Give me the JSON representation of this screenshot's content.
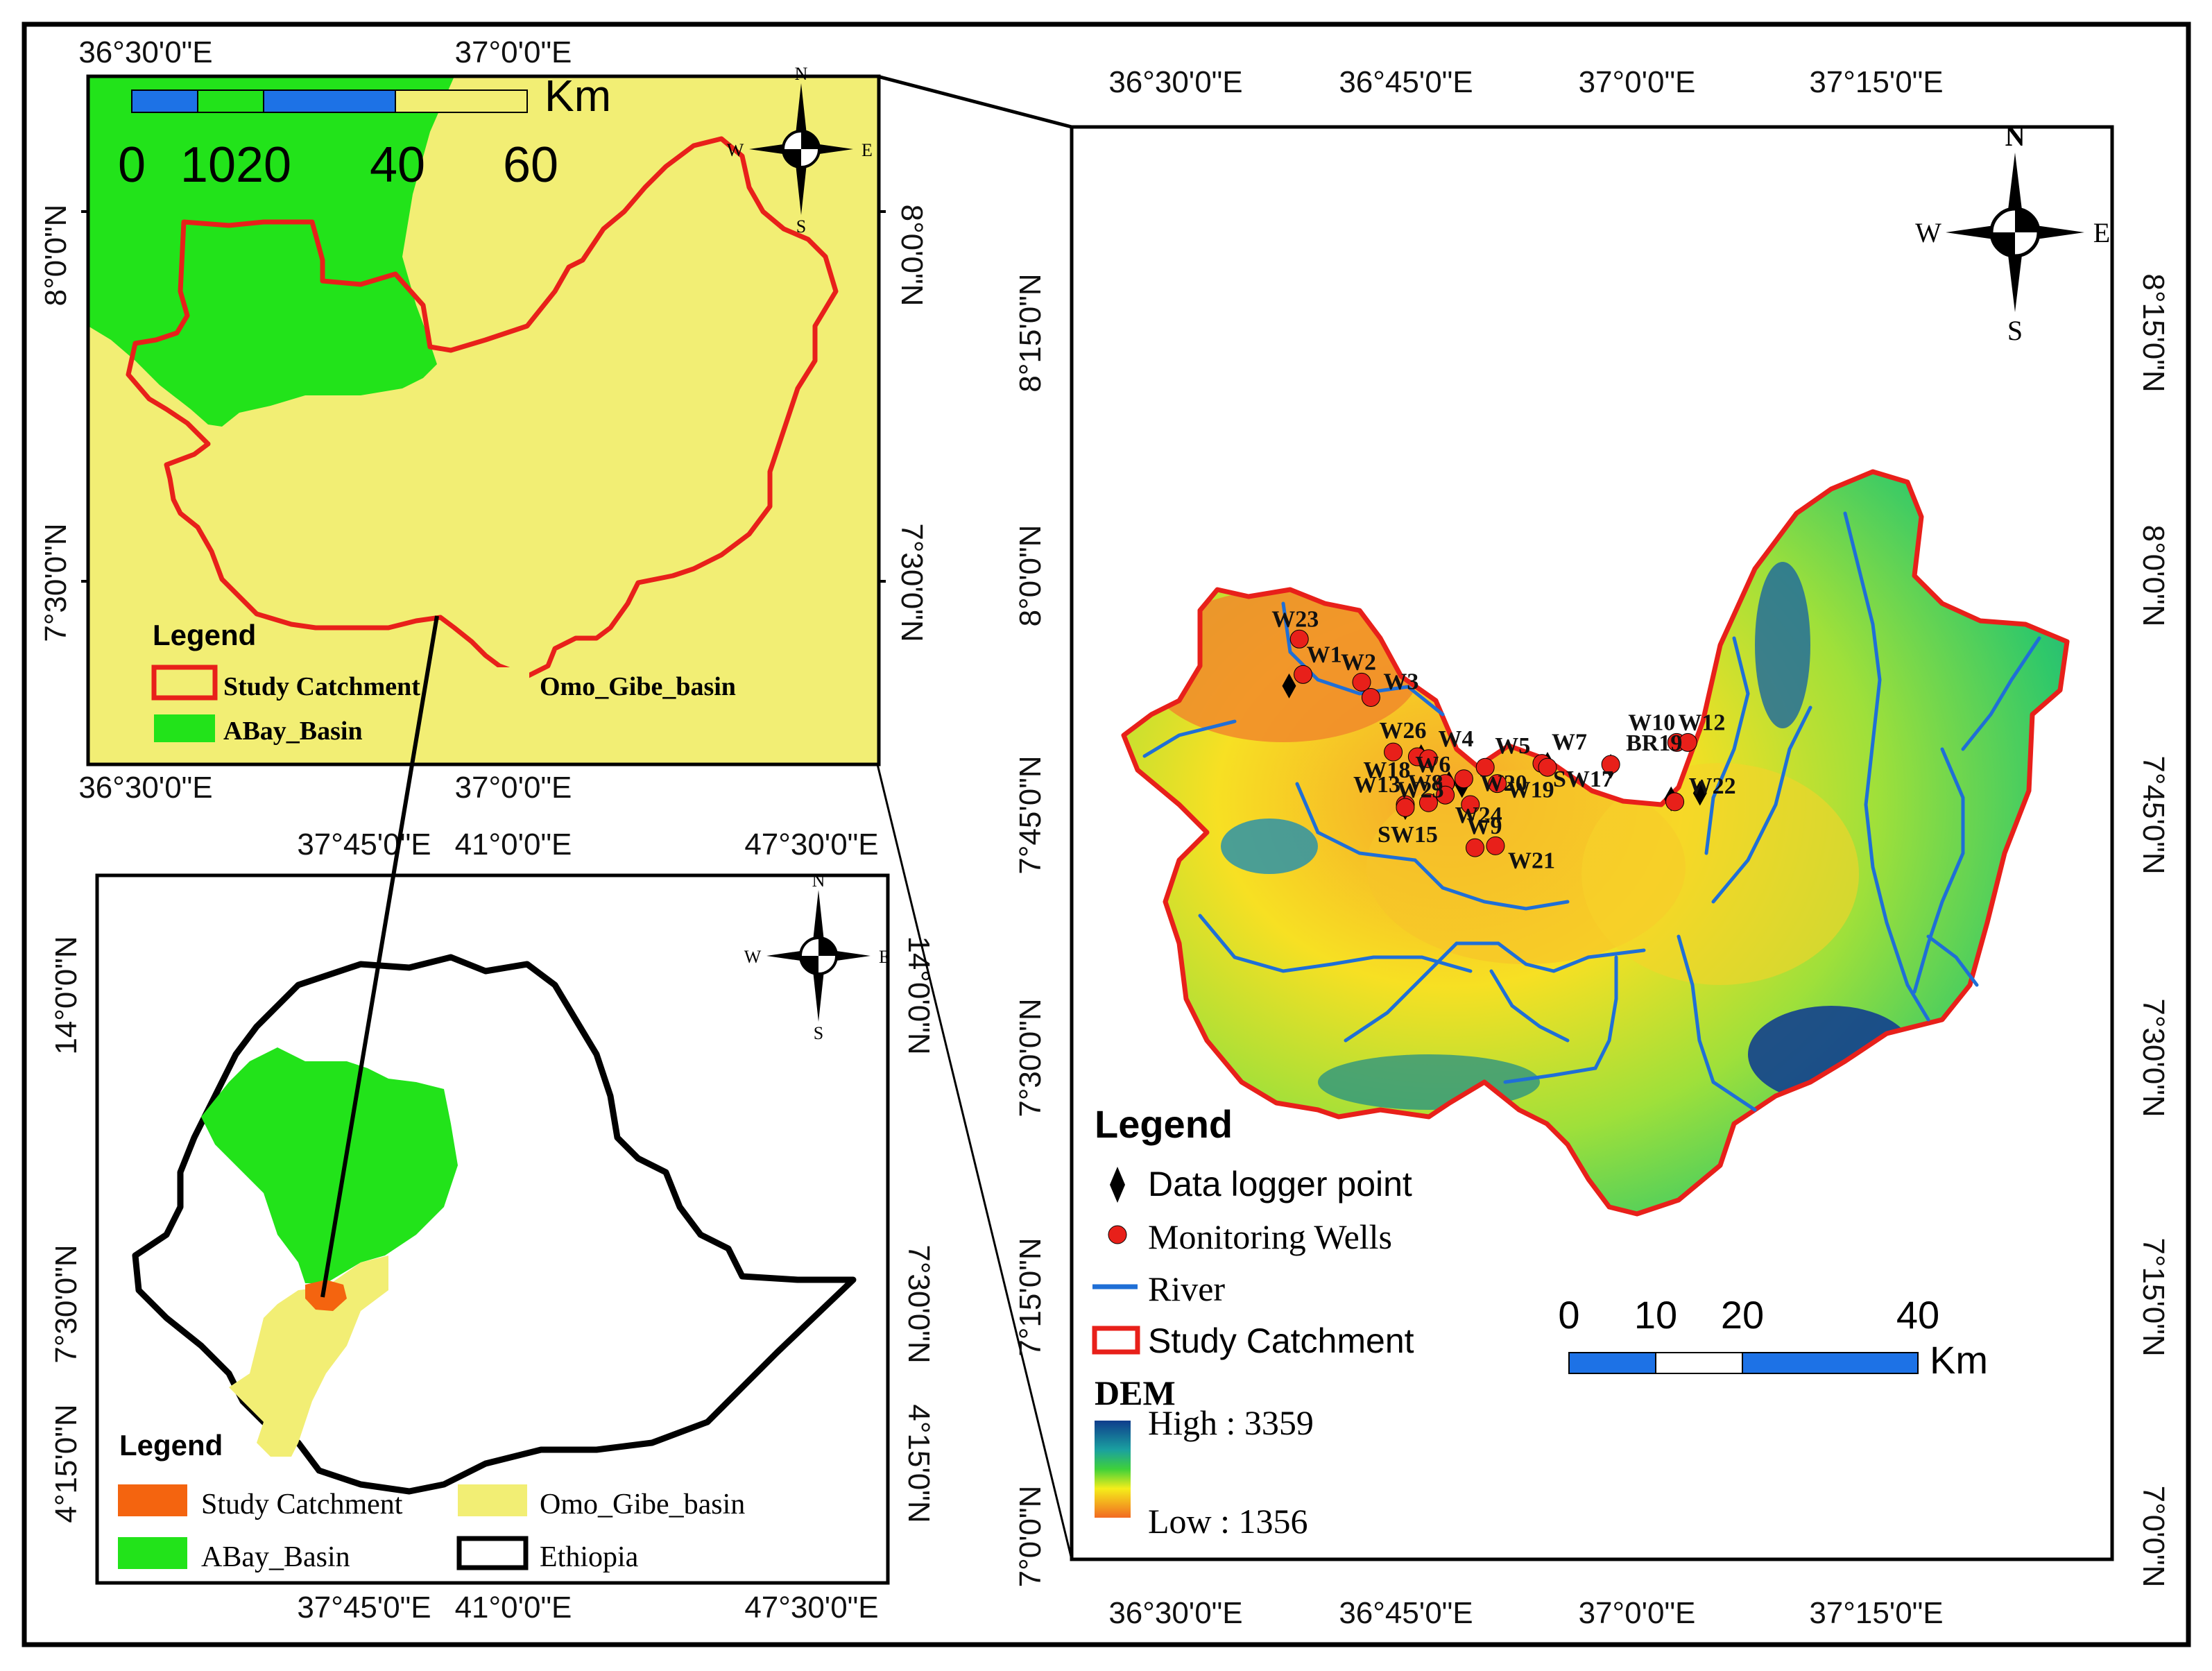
{
  "colors": {
    "abay": "#22e31a",
    "omo_gibe": "#f2ee74",
    "study_red": "#e8201a",
    "study_orange": "#f4640f",
    "river": "#1f6fd6",
    "scale_blue": "#1d72e6",
    "dem_high": "#103e8e",
    "dem_low": "#f26a22"
  },
  "inset_top": {
    "x_ticks": [
      "36°30'0\"E",
      "37°0'0\"E"
    ],
    "y_ticks": [
      "8°0'0\"N",
      "7°30'0\"N"
    ],
    "scale": {
      "unit": "Km",
      "labels": [
        "0",
        "1020",
        "40",
        "60"
      ]
    },
    "north_arrow": {
      "n": "N",
      "s": "S",
      "e": "E",
      "w": "W"
    },
    "legend": {
      "title": "Legend",
      "items": [
        "Study Catchment",
        "Omo_Gibe_basin",
        "ABay_Basin"
      ]
    }
  },
  "inset_bottom": {
    "x_ticks": [
      "37°45'0\"E",
      "41°0'0\"E",
      "47°30'0\"E"
    ],
    "y_ticks": [
      "14°0'0\"N",
      "7°30'0\"N",
      "4°15'0\"N"
    ],
    "north_arrow": {
      "n": "N",
      "s": "S",
      "e": "E",
      "w": "W"
    },
    "legend": {
      "title": "Legend",
      "items": [
        "Study Catchment",
        "Omo_Gibe_basin",
        "ABay_Basin",
        "Ethiopia"
      ]
    }
  },
  "main_map": {
    "x_ticks": [
      "36°30'0\"E",
      "36°45'0\"E",
      "37°0'0\"E",
      "37°15'0\"E"
    ],
    "y_ticks": [
      "8°15'0\"N",
      "8°0'0\"N",
      "7°45'0\"N",
      "7°30'0\"N",
      "7°15'0\"N",
      "7°0'0\"N"
    ],
    "north_arrow": {
      "n": "N",
      "s": "S",
      "e": "E",
      "w": "W"
    },
    "points": [
      {
        "label": "W23",
        "lon": 36.633,
        "lat": 7.894
      },
      {
        "label": "W1",
        "lon": 36.637,
        "lat": 7.857
      },
      {
        "label": "W2",
        "lon": 36.7,
        "lat": 7.849
      },
      {
        "label": "W3",
        "lon": 36.71,
        "lat": 7.833
      },
      {
        "label": "W26",
        "lon": 36.734,
        "lat": 7.776
      },
      {
        "label": "W18",
        "lon": 36.76,
        "lat": 7.771
      },
      {
        "label": "W4",
        "lon": 36.772,
        "lat": 7.769
      },
      {
        "label": "W5",
        "lon": 36.833,
        "lat": 7.76
      },
      {
        "label": "W6",
        "lon": 36.81,
        "lat": 7.748
      },
      {
        "label": "W19",
        "lon": 36.846,
        "lat": 7.743
      },
      {
        "label": "W7",
        "lon": 36.894,
        "lat": 7.764
      },
      {
        "label": "SW17",
        "lon": 36.9,
        "lat": 7.76
      },
      {
        "label": "BR19",
        "lon": 36.968,
        "lat": 7.763
      },
      {
        "label": "W10",
        "lon": 37.039,
        "lat": 7.786
      },
      {
        "label": "W12",
        "lon": 37.051,
        "lat": 7.786
      },
      {
        "label": "W25",
        "lon": 36.79,
        "lat": 7.743
      },
      {
        "label": "W13",
        "lon": 36.747,
        "lat": 7.721
      },
      {
        "label": "W8",
        "lon": 36.772,
        "lat": 7.723
      },
      {
        "label": "SW15",
        "lon": 36.747,
        "lat": 7.718
      },
      {
        "label": "W20",
        "lon": 36.817,
        "lat": 7.721
      },
      {
        "label": "W24",
        "lon": 36.79,
        "lat": 7.731
      },
      {
        "label": "W22",
        "lon": 37.037,
        "lat": 7.724
      },
      {
        "label": "W9",
        "lon": 36.822,
        "lat": 7.676
      },
      {
        "label": "W21",
        "lon": 36.844,
        "lat": 7.678
      }
    ],
    "loggers": [
      {
        "lon": 36.622,
        "lat": 7.845
      },
      {
        "lon": 36.764,
        "lat": 7.771
      },
      {
        "lon": 36.794,
        "lat": 7.743
      },
      {
        "lon": 36.808,
        "lat": 7.741
      },
      {
        "lon": 36.9,
        "lat": 7.763
      },
      {
        "lon": 36.968,
        "lat": 7.761
      },
      {
        "lon": 37.033,
        "lat": 7.727
      },
      {
        "lon": 37.064,
        "lat": 7.733
      },
      {
        "lon": 36.747,
        "lat": 7.718
      }
    ],
    "legend": {
      "title": "Legend",
      "items": [
        "Data logger point",
        "Monitoring Wells",
        "River",
        "Study Catchment"
      ],
      "dem_title": "DEM",
      "dem_high": "High : 3359",
      "dem_low": "Low : 1356"
    },
    "scale": {
      "unit": "Km",
      "labels": [
        "0",
        "10",
        "20",
        "40"
      ]
    }
  }
}
